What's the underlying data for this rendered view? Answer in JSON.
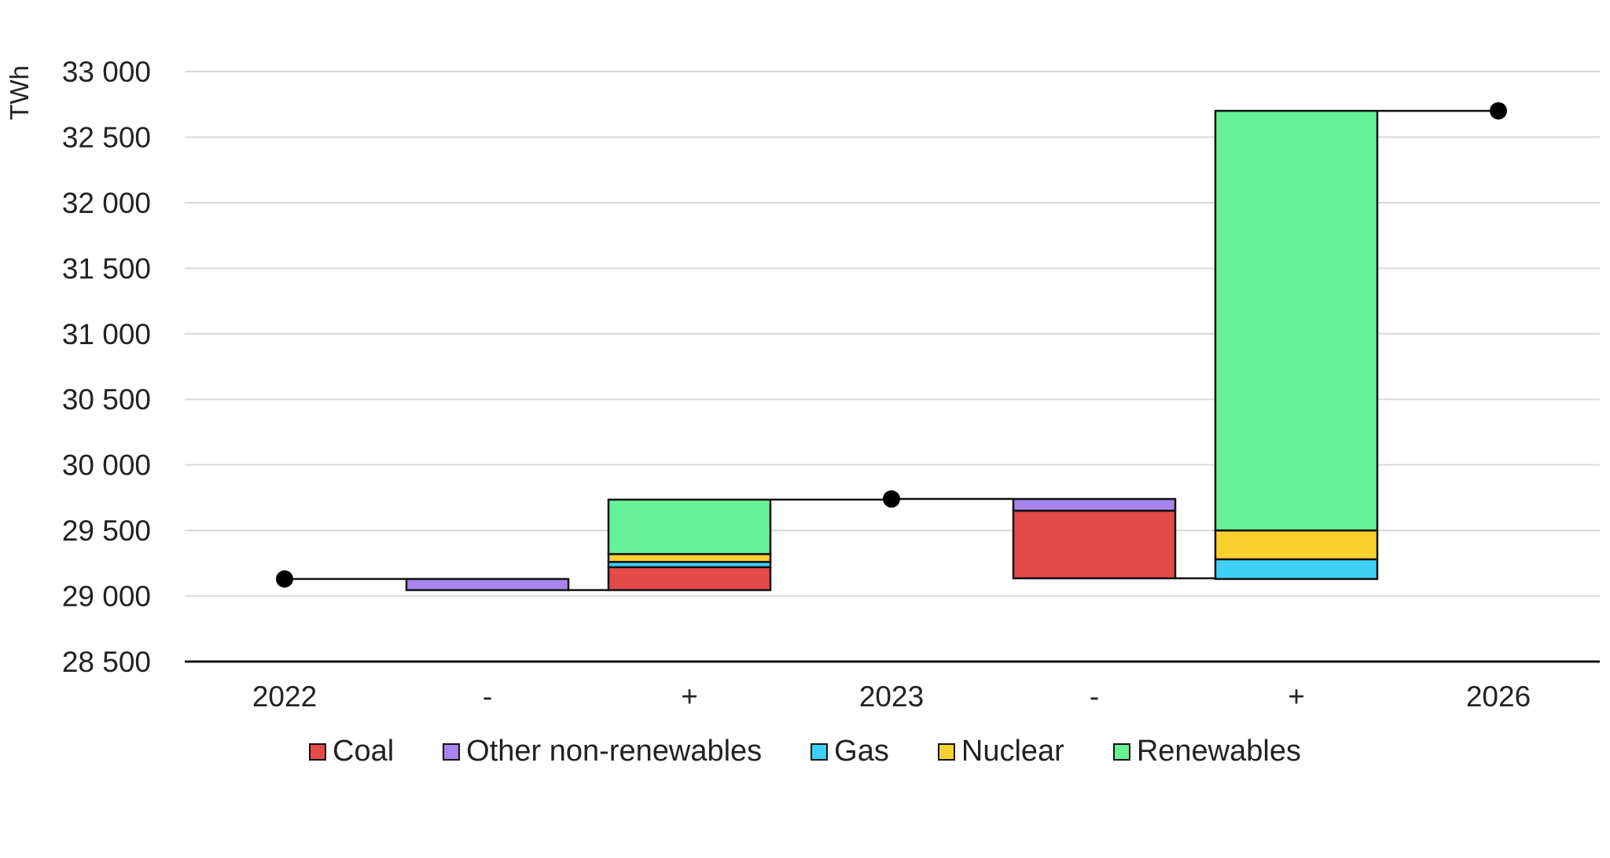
{
  "chart_data": {
    "type": "bar",
    "subtype": "waterfall",
    "ylabel": "TWh",
    "ylim": [
      28500,
      33000
    ],
    "yticks": [
      28500,
      29000,
      29500,
      30000,
      30500,
      31000,
      31500,
      32000,
      32500,
      33000
    ],
    "ytick_labels": [
      "28 500",
      "29 000",
      "29 500",
      "30 000",
      "30 500",
      "31 000",
      "31 500",
      "32 000",
      "32 500",
      "33 000"
    ],
    "categories": [
      "2022",
      "-",
      "+",
      "2023",
      "-",
      "+",
      "2026"
    ],
    "totals": [
      {
        "category_index": 0,
        "label": "2022",
        "value": 29130
      },
      {
        "category_index": 3,
        "label": "2023",
        "value": 29740
      },
      {
        "category_index": 6,
        "label": "2026",
        "value": 32700
      }
    ],
    "series": [
      {
        "name": "Coal",
        "color": "#E34A48",
        "values": [
          0,
          0,
          175,
          0,
          -515,
          0,
          0
        ]
      },
      {
        "name": "Other non-renewables",
        "color": "#A784EE",
        "values": [
          0,
          -85,
          0,
          0,
          -90,
          0,
          0
        ]
      },
      {
        "name": "Gas",
        "color": "#3FD0F7",
        "values": [
          0,
          0,
          40,
          0,
          0,
          150,
          0
        ]
      },
      {
        "name": "Nuclear",
        "color": "#F9D12F",
        "values": [
          0,
          0,
          60,
          0,
          0,
          220,
          0
        ]
      },
      {
        "name": "Renewables",
        "color": "#66F195",
        "values": [
          0,
          0,
          415,
          0,
          0,
          3200,
          0
        ]
      }
    ],
    "stacking": [
      {
        "category_index": 1,
        "base": 29130,
        "direction": "down",
        "order": [
          "Other non-renewables"
        ]
      },
      {
        "category_index": 2,
        "base": 29045,
        "direction": "up",
        "order": [
          "Coal",
          "Gas",
          "Nuclear",
          "Renewables"
        ]
      },
      {
        "category_index": 4,
        "base": 29740,
        "direction": "down",
        "order": [
          "Other non-renewables",
          "Coal"
        ]
      },
      {
        "category_index": 5,
        "base": 29130,
        "direction": "up",
        "order": [
          "Gas",
          "Nuclear",
          "Renewables"
        ]
      }
    ],
    "legend": [
      "Coal",
      "Other non-renewables",
      "Gas",
      "Nuclear",
      "Renewables"
    ],
    "legend_position": "bottom",
    "grid": true
  }
}
